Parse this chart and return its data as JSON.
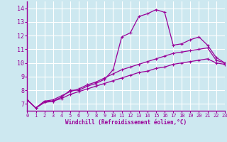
{
  "xlabel": "Windchill (Refroidissement éolien,°C)",
  "background_color": "#cde8f0",
  "line_color": "#990099",
  "grid_color": "#b8d8e8",
  "x_data": [
    0,
    1,
    2,
    3,
    4,
    5,
    6,
    7,
    8,
    9,
    10,
    11,
    12,
    13,
    14,
    15,
    16,
    17,
    18,
    19,
    20,
    21,
    22,
    23
  ],
  "y_line1": [
    7.3,
    6.7,
    7.2,
    7.2,
    7.5,
    8.0,
    8.0,
    8.3,
    8.5,
    8.8,
    9.5,
    11.9,
    12.2,
    13.4,
    13.6,
    13.9,
    13.7,
    11.3,
    11.4,
    11.7,
    11.9,
    11.3,
    10.4,
    10.0
  ],
  "y_line2": [
    7.3,
    6.7,
    7.2,
    7.3,
    7.6,
    7.9,
    8.1,
    8.4,
    8.6,
    8.9,
    9.2,
    9.5,
    9.7,
    9.9,
    10.1,
    10.3,
    10.5,
    10.7,
    10.8,
    10.9,
    11.0,
    11.1,
    10.2,
    10.0
  ],
  "y_line3": [
    7.3,
    6.7,
    7.1,
    7.2,
    7.4,
    7.7,
    7.9,
    8.1,
    8.3,
    8.5,
    8.7,
    8.9,
    9.1,
    9.3,
    9.4,
    9.6,
    9.7,
    9.9,
    10.0,
    10.1,
    10.2,
    10.3,
    10.0,
    9.9
  ],
  "xlim": [
    0,
    23
  ],
  "ylim": [
    6.5,
    14.5
  ],
  "yticks": [
    7,
    8,
    9,
    10,
    11,
    12,
    13,
    14
  ],
  "xticks": [
    0,
    1,
    2,
    3,
    4,
    5,
    6,
    7,
    8,
    9,
    10,
    11,
    12,
    13,
    14,
    15,
    16,
    17,
    18,
    19,
    20,
    21,
    22,
    23
  ]
}
